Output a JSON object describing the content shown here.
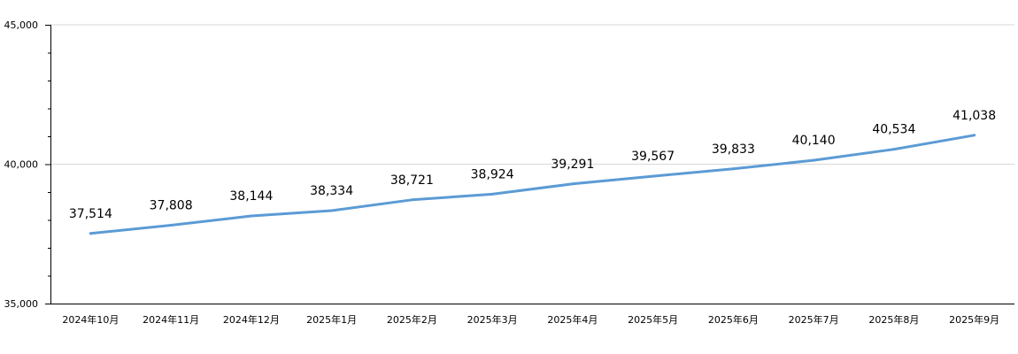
{
  "chart_data": {
    "type": "line",
    "title": "",
    "xlabel": "",
    "ylabel": "",
    "categories": [
      "2024年10月",
      "2024年11月",
      "2024年12月",
      "2025年1月",
      "2025年2月",
      "2025年3月",
      "2025年4月",
      "2025年5月",
      "2025年6月",
      "2025年7月",
      "2025年8月",
      "2025年9月"
    ],
    "series": [
      {
        "values": [
          37514,
          37808,
          38144,
          38334,
          38721,
          38924,
          39291,
          39567,
          39833,
          40140,
          40534,
          41038
        ],
        "value_labels": [
          "37,514",
          "37,808",
          "38,144",
          "38,334",
          "38,721",
          "38,924",
          "39,291",
          "39,567",
          "39,833",
          "40,140",
          "40,534",
          "41,038"
        ],
        "color": "#5b9bd5"
      }
    ],
    "ylim": [
      35000,
      45000
    ],
    "y_ticks": [
      35000,
      40000,
      45000
    ],
    "y_tick_labels": [
      "35,000",
      "40,000",
      "45,000"
    ],
    "grid": true,
    "legend": "none"
  }
}
